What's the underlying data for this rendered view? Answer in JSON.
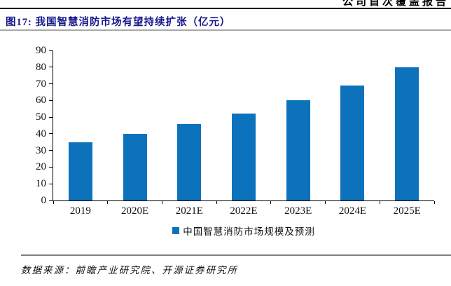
{
  "header": {
    "report_type": "公司首次覆盖报告"
  },
  "figure": {
    "title": "图17: 我国智慧消防市场有望持续扩张（亿元）",
    "source": "数据来源：前瞻产业研究院、开源证券研究所"
  },
  "colors": {
    "bar": "#0d72bc",
    "title": "#16168c",
    "axis": "#000000",
    "rule_gray": "#a8a8a8"
  },
  "chart_data": {
    "type": "bar",
    "title": "我国智慧消防市场有望持续扩张",
    "unit": "亿元",
    "categories": [
      "2019",
      "2020E",
      "2021E",
      "2022E",
      "2023E",
      "2024E",
      "2025E"
    ],
    "values": [
      35,
      40,
      46,
      52,
      60,
      69,
      80
    ],
    "ylim": [
      0,
      90
    ],
    "ytick_step": 10,
    "xlabel": "",
    "ylabel": "",
    "grid": false,
    "legend": [
      "中国智慧消防市场规模及预测"
    ],
    "legend_position": "bottom"
  }
}
